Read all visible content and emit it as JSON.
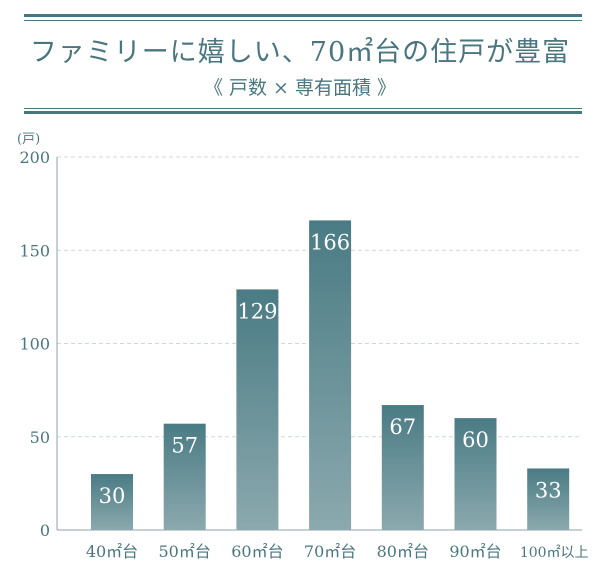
{
  "header": {
    "title": "ファミリーに嬉しい、70㎡台の住戸が豊富",
    "subtitle": "《 戸数 × 専有面積 》"
  },
  "colors": {
    "accent": "#4a7680",
    "bar_top": "#4a7b84",
    "bar_bottom": "#8ba9ae",
    "grid": "#cfd8da"
  },
  "chart_data": {
    "type": "bar",
    "title": "",
    "ylabel": "(戸)",
    "xlabel": "",
    "categories": [
      "40㎡台",
      "50㎡台",
      "60㎡台",
      "70㎡台",
      "80㎡台",
      "90㎡台",
      "100㎡以上"
    ],
    "values": [
      30,
      57,
      129,
      166,
      67,
      60,
      33
    ],
    "ylim": [
      0,
      200
    ],
    "yticks": [
      0,
      50,
      100,
      150,
      200
    ],
    "grid": true,
    "data_labels": true
  }
}
